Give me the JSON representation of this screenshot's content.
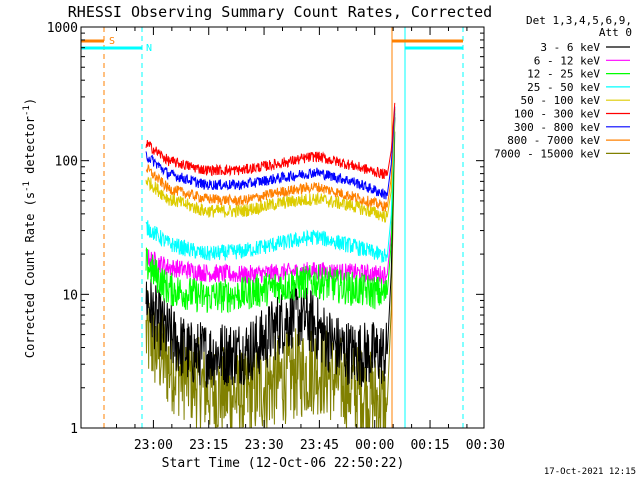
{
  "chart_data": {
    "type": "line",
    "title": "RHESSI Observing Summary Count Rates, Corrected",
    "xlabel": "Start Time (12-Oct-06 22:50:22)",
    "ylabel_main": "Corrected Count Rate (s",
    "ylabel_sup1": "-1",
    "ylabel_mid": " detector",
    "ylabel_sup2": "-1",
    "ylabel_end": ")",
    "yscale": "log",
    "ylim": [
      1,
      1000
    ],
    "xlim_min": [
      -9.63,
      99.63
    ],
    "y_ticks": [
      {
        "value": 1,
        "label": "1"
      },
      {
        "value": 10,
        "label": "10"
      },
      {
        "value": 100,
        "label": "100"
      },
      {
        "value": 1000,
        "label": "1000"
      }
    ],
    "x_ticks": [
      {
        "value": 10,
        "label": "23:00"
      },
      {
        "value": 25,
        "label": "23:15"
      },
      {
        "value": 40,
        "label": "23:30"
      },
      {
        "value": 55,
        "label": "23:45"
      },
      {
        "value": 70,
        "label": "00:00"
      },
      {
        "value": 85,
        "label": "00:15"
      },
      {
        "value": 100,
        "label": "00:30"
      }
    ],
    "legend_header": [
      "Det 1,3,4,5,6,9,",
      "Att 0"
    ],
    "legend_position": "right",
    "series": [
      {
        "name": "3 - 6 keV",
        "color": "#000000",
        "min": [
          8,
          10,
          14,
          20,
          24,
          28,
          31,
          36,
          40,
          44,
          48,
          52,
          56,
          60,
          64,
          68,
          71,
          73.4,
          74.5,
          75.5
        ],
        "values": [
          10,
          7,
          5,
          3.6,
          3.6,
          3.6,
          3.6,
          3.8,
          4.5,
          6,
          7,
          6.5,
          5,
          4,
          3.6,
          3.6,
          3.6,
          3.6,
          15,
          250
        ],
        "noise": 0.25
      },
      {
        "name": "6 - 12 keV",
        "color": "#ff00ff",
        "min": [
          8,
          14,
          24,
          34,
          44,
          54,
          64,
          73.4,
          74.5,
          75.5
        ],
        "values": [
          19,
          16,
          14.5,
          14,
          14.5,
          15,
          14.5,
          14,
          30,
          260
        ],
        "noise": 0.07
      },
      {
        "name": "12 - 25 keV",
        "color": "#00ff00",
        "min": [
          8,
          14,
          24,
          34,
          44,
          54,
          64,
          73.4,
          74.5,
          75.5
        ],
        "values": [
          17,
          11,
          9.5,
          10,
          11.5,
          12.5,
          11,
          10,
          25,
          260
        ],
        "noise": 0.13
      },
      {
        "name": "25 - 50 keV",
        "color": "#00ffff",
        "min": [
          8,
          14,
          24,
          34,
          44,
          54,
          64,
          73.4,
          74.5,
          75.5
        ],
        "values": [
          32,
          24,
          20,
          21,
          24,
          27,
          23,
          19,
          40,
          265
        ],
        "noise": 0.06
      },
      {
        "name": "50 - 100 keV",
        "color": "#ddcc00",
        "min": [
          8,
          14,
          24,
          34,
          44,
          54,
          64,
          73.4,
          74.5,
          75.5
        ],
        "values": [
          72,
          52,
          42,
          42,
          48,
          52,
          46,
          38,
          60,
          265
        ],
        "noise": 0.05
      },
      {
        "name": "100 - 300 keV",
        "color": "#ff0000",
        "min": [
          8,
          14,
          24,
          34,
          44,
          54,
          64,
          73.4,
          74.5,
          75.5
        ],
        "values": [
          135,
          100,
          85,
          85,
          95,
          108,
          92,
          78,
          120,
          285
        ],
        "noise": 0.04
      },
      {
        "name": "300 - 800 keV",
        "color": "#0000ff",
        "min": [
          8,
          14,
          24,
          34,
          44,
          54,
          64,
          73.4,
          74.5,
          75.5
        ],
        "values": [
          110,
          80,
          66,
          66,
          74,
          82,
          70,
          55,
          95,
          270
        ],
        "noise": 0.04
      },
      {
        "name": "800 - 7000 keV",
        "color": "#ff8000",
        "min": [
          8,
          14,
          24,
          34,
          44,
          54,
          64,
          73.4,
          74.5,
          75.5
        ],
        "values": [
          88,
          62,
          52,
          50,
          58,
          64,
          54,
          45,
          75,
          265
        ],
        "noise": 0.04
      },
      {
        "name": "7000 - 15000 keV",
        "color": "#808000",
        "min": [
          8,
          14,
          24,
          34,
          44,
          54,
          64,
          73.4,
          74.5,
          75.5
        ],
        "values": [
          5,
          3,
          2,
          1.7,
          2.3,
          2.8,
          2,
          1.5,
          8,
          200
        ],
        "noise": 0.35
      }
    ],
    "annotations": [
      {
        "label": "S",
        "color": "#ff8000"
      },
      {
        "label": "N",
        "color": "#00ffff"
      }
    ],
    "timestamp": "17-Oct-2021 12:15"
  }
}
